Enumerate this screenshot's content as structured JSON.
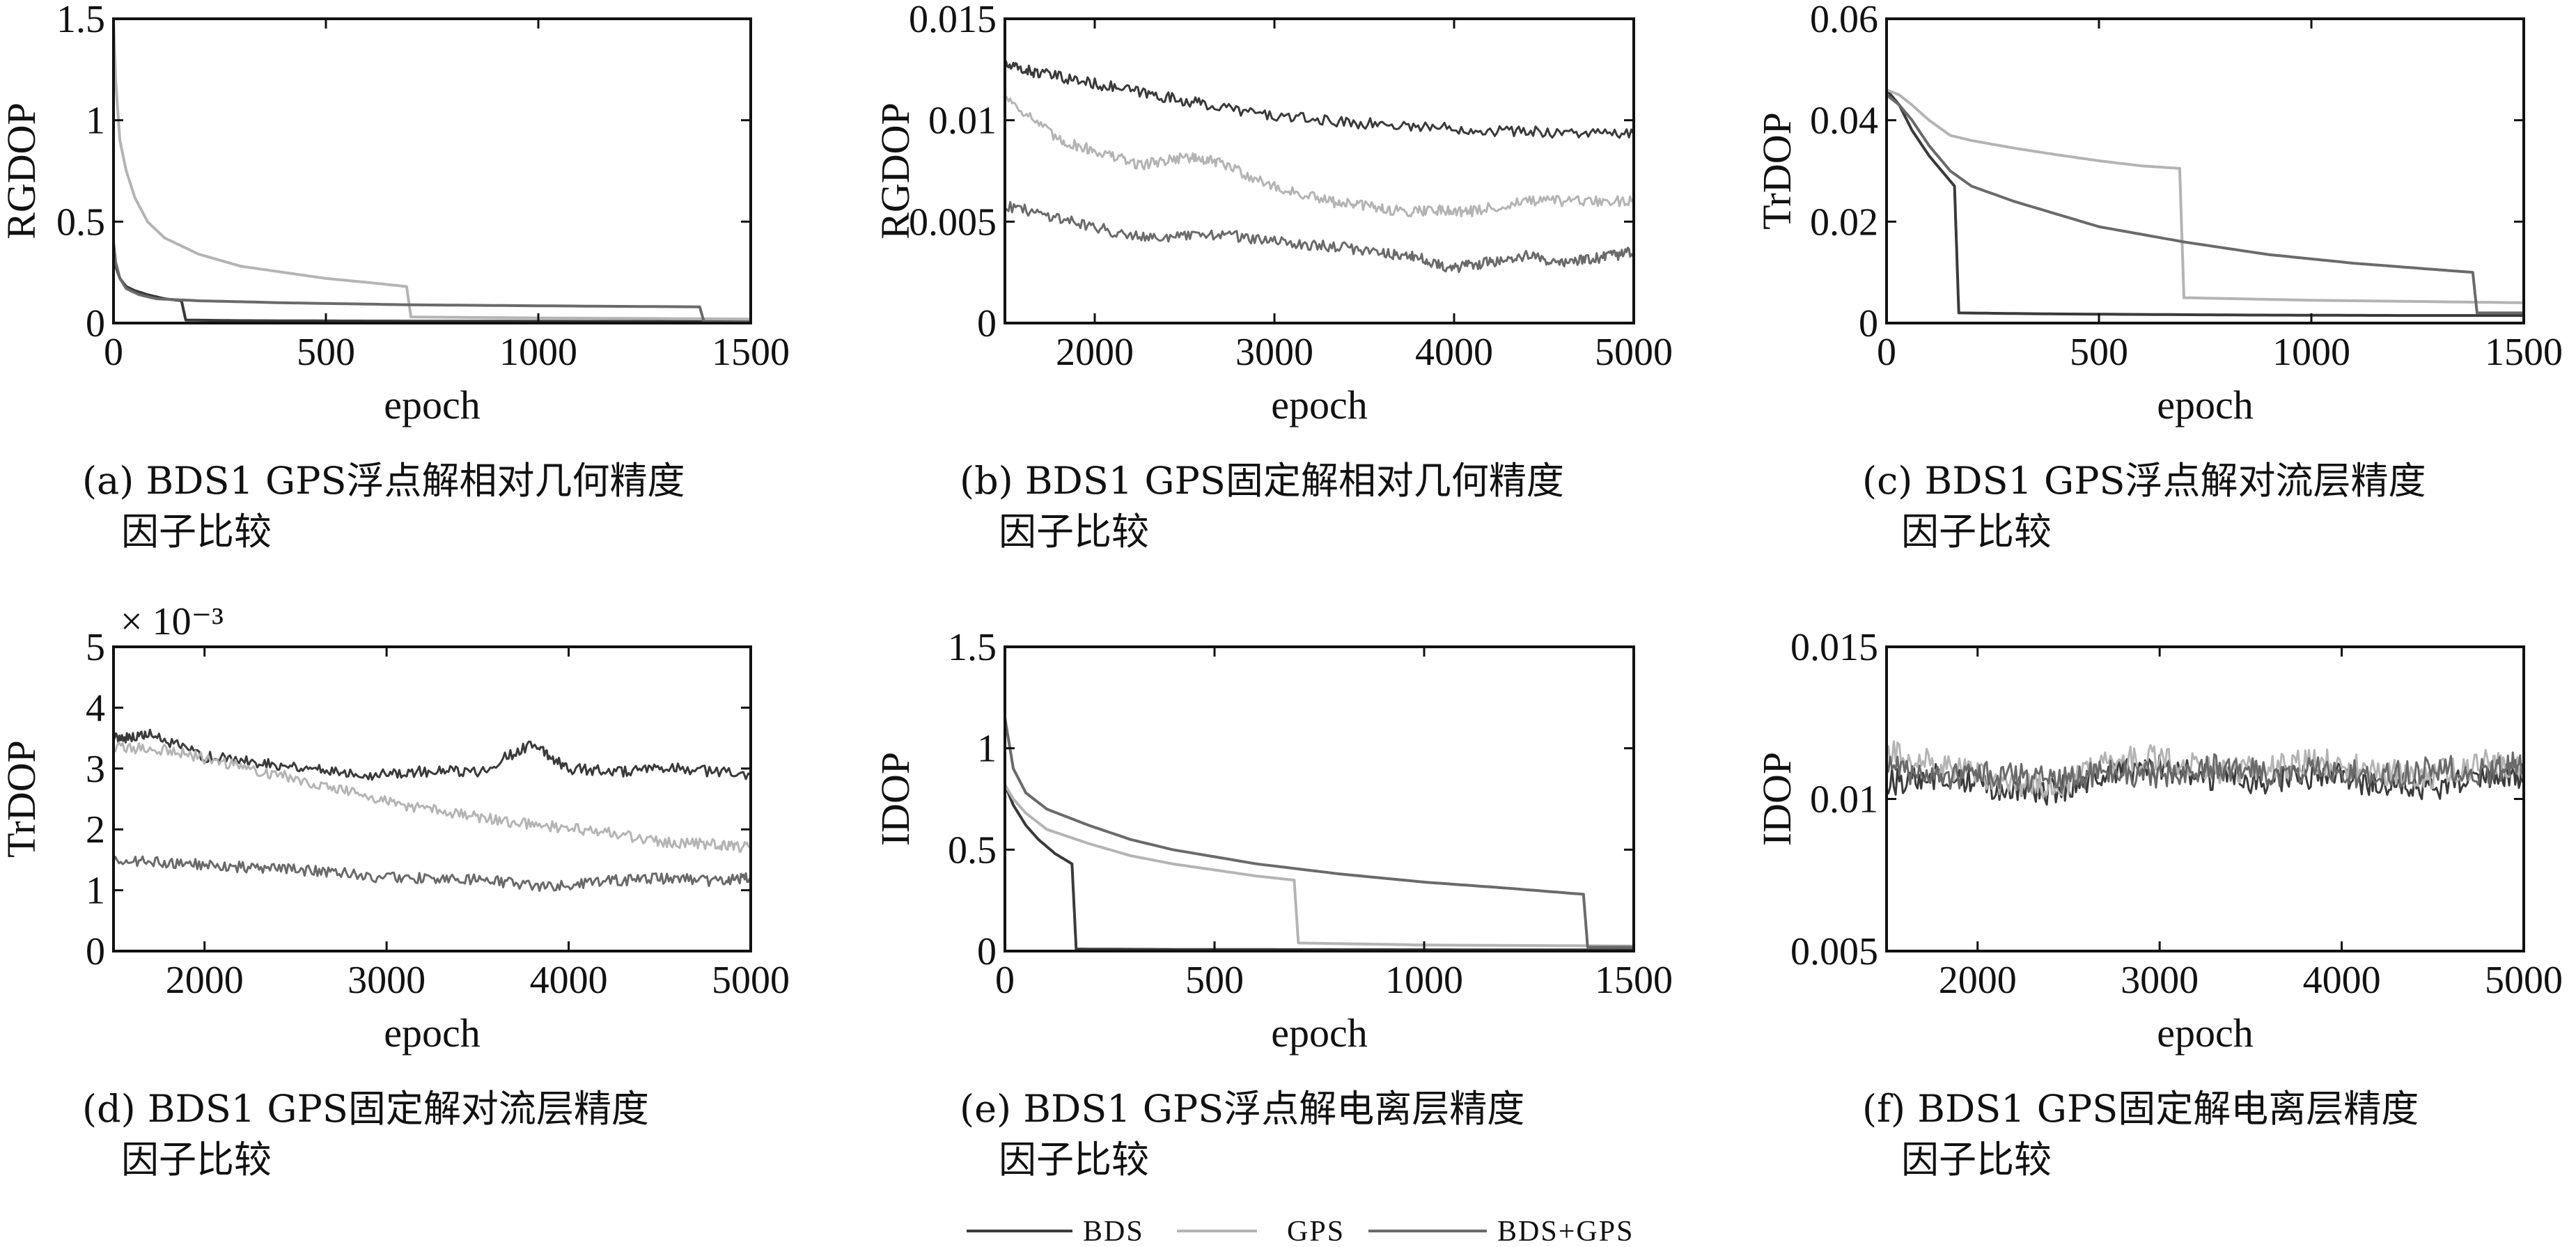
{
  "series_colors": {
    "BDS": "#3a3a3a",
    "GPS": "#b4b4b4",
    "BDS+GPS": "#6a6a6a"
  },
  "legend": {
    "items": [
      "BDS",
      "GPS",
      "BDS+GPS"
    ]
  },
  "chart_data": [
    {
      "id": "a",
      "type": "line",
      "ylabel": "RGDOP",
      "xlabel": "epoch",
      "xlim": [
        0,
        1500
      ],
      "ylim": [
        0,
        1.5
      ],
      "xticks": [
        "0",
        "500",
        "1000",
        "1500"
      ],
      "yticks": [
        "0",
        "0.5",
        "1",
        "1.5"
      ],
      "caption": [
        "(a) BDS1 GPS浮点解相对几何精度",
        "因子比较"
      ],
      "series": [
        {
          "name": "BDS",
          "x": [
            0,
            5,
            15,
            30,
            50,
            80,
            120,
            160,
            170,
            300,
            600,
            1400,
            1500
          ],
          "y": [
            0.35,
            0.28,
            0.22,
            0.18,
            0.16,
            0.14,
            0.12,
            0.11,
            0.015,
            0.012,
            0.01,
            0.008,
            0.008
          ]
        },
        {
          "name": "GPS",
          "x": [
            0,
            5,
            15,
            30,
            50,
            80,
            120,
            200,
            300,
            400,
            500,
            600,
            690,
            700,
            1000,
            1500
          ],
          "y": [
            1.5,
            1.2,
            0.9,
            0.75,
            0.62,
            0.5,
            0.42,
            0.34,
            0.28,
            0.25,
            0.22,
            0.2,
            0.18,
            0.03,
            0.025,
            0.02
          ]
        },
        {
          "name": "BDS+GPS",
          "x": [
            0,
            5,
            15,
            30,
            60,
            100,
            200,
            400,
            700,
            1000,
            1380,
            1390,
            1500
          ],
          "y": [
            0.4,
            0.3,
            0.22,
            0.17,
            0.14,
            0.12,
            0.11,
            0.1,
            0.09,
            0.085,
            0.08,
            0.005,
            0.005
          ]
        }
      ]
    },
    {
      "id": "b",
      "type": "line",
      "ylabel": "RGDOP",
      "xlabel": "epoch",
      "xlim": [
        1500,
        5000
      ],
      "ylim": [
        0,
        0.015
      ],
      "xticks": [
        "2000",
        "3000",
        "4000",
        "5000"
      ],
      "yticks": [
        "0",
        "0.005",
        "0.01",
        "0.015"
      ],
      "caption": [
        "(b) BDS1 GPS固定解相对几何精度",
        "因子比较"
      ],
      "series": [
        {
          "name": "BDS",
          "x": [
            1500,
            1700,
            2000,
            2300,
            2600,
            3000,
            3400,
            3800,
            4200,
            4600,
            5000
          ],
          "y": [
            0.0127,
            0.0123,
            0.0118,
            0.0113,
            0.0108,
            0.0102,
            0.0099,
            0.0097,
            0.0095,
            0.0094,
            0.0093
          ]
        },
        {
          "name": "GPS",
          "x": [
            1500,
            1800,
            2000,
            2250,
            2500,
            2700,
            3000,
            3300,
            3500,
            3700,
            3900,
            4100,
            4400,
            4700,
            5000
          ],
          "y": [
            0.0112,
            0.009,
            0.0085,
            0.0078,
            0.0082,
            0.0079,
            0.0067,
            0.006,
            0.0058,
            0.0055,
            0.0056,
            0.0055,
            0.006,
            0.006,
            0.006
          ]
        },
        {
          "name": "BDS+GPS",
          "x": [
            1500,
            1800,
            2100,
            2400,
            2700,
            3000,
            3300,
            3600,
            3800,
            4000,
            4200,
            4400,
            4600,
            4800,
            5000
          ],
          "y": [
            0.0058,
            0.0052,
            0.0045,
            0.0042,
            0.0044,
            0.004,
            0.0038,
            0.0035,
            0.0032,
            0.0027,
            0.003,
            0.0033,
            0.003,
            0.0032,
            0.0035
          ]
        }
      ]
    },
    {
      "id": "c",
      "type": "line",
      "ylabel": "TrDOP",
      "xlabel": "epoch",
      "xlim": [
        0,
        1500
      ],
      "ylim": [
        0,
        0.06
      ],
      "xticks": [
        "0",
        "500",
        "1000",
        "1500"
      ],
      "yticks": [
        "0",
        "0.02",
        "0.04",
        "0.06"
      ],
      "caption": [
        "(c) BDS1 GPS浮点解对流层精度",
        "因子比较"
      ],
      "series": [
        {
          "name": "BDS",
          "x": [
            0,
            30,
            60,
            100,
            140,
            160,
            170,
            400,
            800,
            1200,
            1500
          ],
          "y": [
            0.046,
            0.043,
            0.038,
            0.033,
            0.029,
            0.027,
            0.002,
            0.0018,
            0.0016,
            0.0015,
            0.0015
          ]
        },
        {
          "name": "GPS",
          "x": [
            0,
            30,
            60,
            100,
            150,
            200,
            300,
            400,
            500,
            600,
            690,
            700,
            1000,
            1500
          ],
          "y": [
            0.046,
            0.045,
            0.043,
            0.04,
            0.037,
            0.036,
            0.0345,
            0.0332,
            0.032,
            0.031,
            0.0305,
            0.005,
            0.0045,
            0.004
          ]
        },
        {
          "name": "BDS+GPS",
          "x": [
            0,
            30,
            60,
            100,
            150,
            200,
            300,
            500,
            700,
            900,
            1100,
            1300,
            1380,
            1390,
            1500
          ],
          "y": [
            0.045,
            0.043,
            0.04,
            0.035,
            0.03,
            0.027,
            0.024,
            0.019,
            0.016,
            0.0135,
            0.0118,
            0.0105,
            0.01,
            0.002,
            0.002
          ]
        }
      ]
    },
    {
      "id": "d",
      "type": "line",
      "ylabel": "TrDOP",
      "xlabel": "epoch",
      "xlim": [
        1500,
        5000
      ],
      "ylim": [
        0,
        5
      ],
      "scale_note": "× 10⁻³",
      "xticks": [
        "2000",
        "3000",
        "4000",
        "5000"
      ],
      "yticks": [
        "0",
        "1",
        "2",
        "3",
        "4",
        "5"
      ],
      "caption": [
        "(d) BDS1 GPS固定解对流层精度",
        "因子比较"
      ],
      "series": [
        {
          "name": "BDS",
          "x": [
            1500,
            1700,
            2000,
            2300,
            2600,
            2900,
            3200,
            3500,
            3800,
            4000,
            4300,
            4600,
            5000
          ],
          "y": [
            3.5,
            3.55,
            3.2,
            3.1,
            3.0,
            2.9,
            2.95,
            2.95,
            3.4,
            3.0,
            2.95,
            3.0,
            2.9
          ]
        },
        {
          "name": "GPS",
          "x": [
            1500,
            1800,
            2100,
            2400,
            2700,
            3000,
            3300,
            3600,
            3900,
            4200,
            4500,
            4800,
            5000
          ],
          "y": [
            3.35,
            3.3,
            3.1,
            2.9,
            2.7,
            2.45,
            2.3,
            2.15,
            2.05,
            1.95,
            1.8,
            1.75,
            1.7
          ]
        },
        {
          "name": "BDS+GPS",
          "x": [
            1500,
            1800,
            2100,
            2400,
            2700,
            3000,
            3300,
            3600,
            3900,
            4200,
            4500,
            4800,
            5000
          ],
          "y": [
            1.5,
            1.45,
            1.4,
            1.35,
            1.3,
            1.2,
            1.2,
            1.15,
            1.05,
            1.15,
            1.2,
            1.15,
            1.2
          ]
        }
      ]
    },
    {
      "id": "e",
      "type": "line",
      "ylabel": "IDOP",
      "xlabel": "epoch",
      "xlim": [
        0,
        1500
      ],
      "ylim": [
        0,
        1.5
      ],
      "xticks": [
        "0",
        "500",
        "1000",
        "1500"
      ],
      "yticks": [
        "0",
        "0.5",
        "1",
        "1.5"
      ],
      "caption": [
        "(e) BDS1 GPS浮点解电离层精度",
        "因子比较"
      ],
      "series": [
        {
          "name": "BDS",
          "x": [
            0,
            20,
            50,
            80,
            120,
            160,
            170,
            400,
            800,
            1200,
            1500
          ],
          "y": [
            0.82,
            0.72,
            0.62,
            0.55,
            0.48,
            0.43,
            0.01,
            0.008,
            0.007,
            0.006,
            0.006
          ]
        },
        {
          "name": "GPS",
          "x": [
            0,
            20,
            50,
            100,
            200,
            300,
            400,
            500,
            600,
            690,
            700,
            1000,
            1500
          ],
          "y": [
            0.82,
            0.75,
            0.68,
            0.6,
            0.53,
            0.47,
            0.43,
            0.4,
            0.37,
            0.35,
            0.04,
            0.03,
            0.025
          ]
        },
        {
          "name": "BDS+GPS",
          "x": [
            0,
            20,
            50,
            100,
            150,
            200,
            300,
            400,
            600,
            800,
            1000,
            1200,
            1380,
            1390,
            1500
          ],
          "y": [
            1.15,
            0.9,
            0.78,
            0.7,
            0.66,
            0.62,
            0.55,
            0.5,
            0.43,
            0.38,
            0.34,
            0.31,
            0.28,
            0.02,
            0.02
          ]
        }
      ]
    },
    {
      "id": "f",
      "type": "line",
      "ylabel": "IDOP",
      "xlabel": "epoch",
      "xlim": [
        1500,
        5000
      ],
      "ylim": [
        0.005,
        0.015
      ],
      "xticks": [
        "2000",
        "3000",
        "4000",
        "5000"
      ],
      "yticks": [
        "0.005",
        "0.01",
        "0.015"
      ],
      "caption": [
        "(f) BDS1 GPS固定解电离层精度",
        "因子比较"
      ],
      "series": [
        {
          "name": "BDS",
          "x": [
            1500,
            1800,
            2100,
            2400,
            2700,
            3000,
            3300,
            3600,
            3900,
            4200,
            4500,
            4800,
            5000
          ],
          "y": [
            0.0105,
            0.0108,
            0.0104,
            0.0102,
            0.0108,
            0.011,
            0.0107,
            0.0106,
            0.0108,
            0.0105,
            0.0104,
            0.0108,
            0.0107
          ]
        },
        {
          "name": "GPS",
          "x": [
            1500,
            1800,
            2100,
            2400,
            2700,
            3000,
            3300,
            3600,
            3900,
            4200,
            4500,
            4800,
            5000
          ],
          "y": [
            0.0115,
            0.0111,
            0.0106,
            0.0103,
            0.0112,
            0.0114,
            0.0109,
            0.0111,
            0.0112,
            0.0109,
            0.0108,
            0.0112,
            0.0109
          ]
        },
        {
          "name": "BDS+GPS",
          "x": [
            1500,
            1800,
            2100,
            2400,
            2700,
            3000,
            3300,
            3600,
            3900,
            4200,
            4500,
            4800,
            5000
          ],
          "y": [
            0.011,
            0.0107,
            0.0108,
            0.0106,
            0.0109,
            0.0108,
            0.0111,
            0.0108,
            0.011,
            0.0107,
            0.011,
            0.0109,
            0.0112
          ]
        }
      ]
    }
  ]
}
